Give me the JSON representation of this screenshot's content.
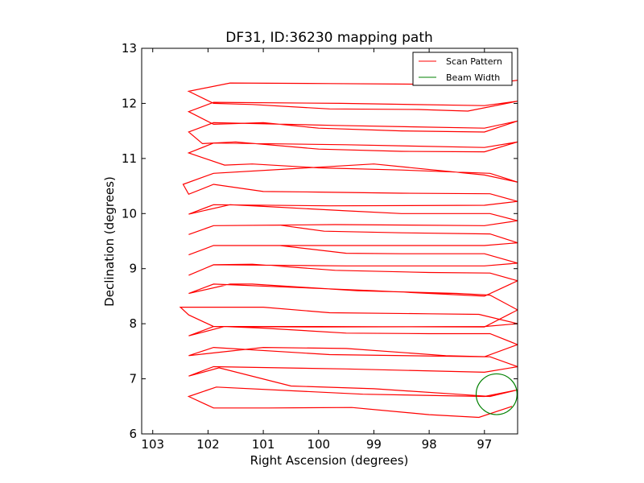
{
  "chart_data": {
    "type": "line",
    "title": "DF31, ID:36230 mapping path",
    "xlabel": "Right Ascension (degrees)",
    "ylabel": "Declination (degrees)",
    "xlim": [
      103.2,
      96.4
    ],
    "ylim": [
      6,
      13
    ],
    "x_inverted": true,
    "xticks": [
      103,
      102,
      101,
      100,
      99,
      98,
      97
    ],
    "yticks": [
      6,
      7,
      8,
      9,
      10,
      11,
      12,
      13
    ],
    "grid": false,
    "legend": {
      "placement": "top-right",
      "entries": [
        {
          "label": "Scan Pattern",
          "color": "#ff0000"
        },
        {
          "label": "Beam Width",
          "color": "#008000"
        }
      ]
    },
    "series": [
      {
        "name": "Scan Pattern",
        "color": "#ff0000",
        "x": [
          96.5,
          97.1,
          98.0,
          99.4,
          100.9,
          101.9,
          102.35,
          101.85,
          99.2,
          97.0,
          96.4,
          96.9,
          97.5,
          99.0,
          100.5,
          101.8,
          102.35,
          101.9,
          99.5,
          97.0,
          96.4,
          96.9,
          97.7,
          99.5,
          101.0,
          102.35,
          101.9,
          99.8,
          97.0,
          96.4,
          96.9,
          98.0,
          99.5,
          101.0,
          101.7,
          102.35,
          101.9,
          100.0,
          97.0,
          96.4,
          97.1,
          98.0,
          99.8,
          101.0,
          102.5,
          102.35,
          101.9,
          100.0,
          97.0,
          96.4,
          96.9,
          97.5,
          99.3,
          101.2,
          101.6,
          102.35,
          101.9,
          99.0,
          97.0,
          96.4,
          96.9,
          98.0,
          99.7,
          101.2,
          101.9,
          102.35,
          101.9,
          99.5,
          97.0,
          96.4,
          97.0,
          98.5,
          99.5,
          100.7,
          101.9,
          102.35,
          101.9,
          99.5,
          97.0,
          96.4,
          96.9,
          98.5,
          99.9,
          100.7,
          101.9,
          102.35,
          101.9,
          99.7,
          97.0,
          96.4,
          96.9,
          98.5,
          99.5,
          101.0,
          101.6,
          102.35,
          101.9,
          99.8,
          97.0,
          96.4,
          96.9,
          98.5,
          100.0,
          101.0,
          101.9,
          102.35,
          102.45,
          101.9,
          99.0,
          97.0,
          96.4,
          96.9,
          98.5,
          100.0,
          101.2,
          101.7,
          102.35,
          101.9,
          99.5,
          97.0,
          96.4,
          97.0,
          98.5,
          100.0,
          101.5,
          102.1,
          102.35,
          101.9,
          99.7,
          97.0,
          96.4,
          97.0,
          98.5,
          100.0,
          101.0,
          101.9,
          102.35,
          101.9,
          99.6,
          97.0,
          96.4,
          97.3,
          98.2,
          99.8,
          101.2,
          101.9,
          102.35,
          101.6,
          99.8,
          97.0,
          96.4
        ],
        "y": [
          6.5,
          6.3,
          6.35,
          6.48,
          6.47,
          6.47,
          6.68,
          6.85,
          6.72,
          6.68,
          6.8,
          6.68,
          6.72,
          6.82,
          6.87,
          7.2,
          7.05,
          7.22,
          7.18,
          7.12,
          7.22,
          7.4,
          7.42,
          7.55,
          7.57,
          7.42,
          7.57,
          7.44,
          7.4,
          7.62,
          7.82,
          7.82,
          7.83,
          7.92,
          7.95,
          7.78,
          7.95,
          7.94,
          7.95,
          8.0,
          8.17,
          8.18,
          8.2,
          8.3,
          8.3,
          8.16,
          7.95,
          7.95,
          7.94,
          8.25,
          8.52,
          8.55,
          8.6,
          8.72,
          8.72,
          8.55,
          8.72,
          8.6,
          8.5,
          8.78,
          8.92,
          8.93,
          8.97,
          9.08,
          9.07,
          8.88,
          9.07,
          9.05,
          9.05,
          9.1,
          9.27,
          9.27,
          9.28,
          9.42,
          9.42,
          9.25,
          9.42,
          9.42,
          9.42,
          9.47,
          9.63,
          9.65,
          9.68,
          9.79,
          9.78,
          9.62,
          9.78,
          9.8,
          9.78,
          9.87,
          10.0,
          10.0,
          10.05,
          10.13,
          10.16,
          9.99,
          10.16,
          10.14,
          10.15,
          10.22,
          10.36,
          10.37,
          10.39,
          10.4,
          10.53,
          10.35,
          10.53,
          10.73,
          10.9,
          10.7,
          10.57,
          10.73,
          10.79,
          10.83,
          10.9,
          10.88,
          11.1,
          11.28,
          11.25,
          11.2,
          11.3,
          11.12,
          11.13,
          11.17,
          11.3,
          11.27,
          11.48,
          11.65,
          11.6,
          11.55,
          11.68,
          11.48,
          11.5,
          11.55,
          11.65,
          11.62,
          11.85,
          12.02,
          12.0,
          11.96,
          12.04,
          11.86,
          11.89,
          11.9,
          11.98,
          12.0,
          12.22,
          12.37,
          12.36,
          12.34,
          12.42
        ]
      },
      {
        "name": "Beam Width",
        "color": "#008000",
        "shape": "circle",
        "center": [
          96.78,
          6.72
        ],
        "radius": 0.37
      }
    ]
  }
}
